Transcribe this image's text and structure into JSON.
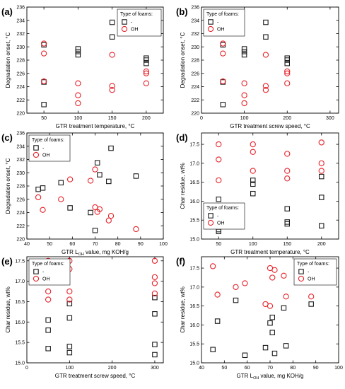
{
  "chart_data": [
    {
      "panel": "(a)",
      "type": "scatter",
      "xlabel": "GTR treatment temperature, °C",
      "ylabel": "Degradation onset, °C",
      "xlim": [
        25,
        225
      ],
      "ylim": [
        220,
        236
      ],
      "xticks": [
        50,
        100,
        150,
        200
      ],
      "yticks": [
        220,
        222,
        224,
        226,
        228,
        230,
        232,
        234,
        236
      ],
      "legend": {
        "title": "Type of foams:",
        "position": "top-right"
      },
      "series": [
        {
          "name": "-",
          "marker": "square",
          "points": [
            [
              50,
              221.3
            ],
            [
              50,
              224.7
            ],
            [
              50,
              230.3
            ],
            [
              100,
              228.8
            ],
            [
              100,
              229.3
            ],
            [
              100,
              229.7
            ],
            [
              150,
              231.5
            ],
            [
              150,
              233.7
            ],
            [
              200,
              227.5
            ],
            [
              200,
              228.0
            ],
            [
              200,
              228.3
            ]
          ]
        },
        {
          "name": "OH",
          "marker": "circle",
          "points": [
            [
              50,
              224.8
            ],
            [
              50,
              229.0
            ],
            [
              50,
              230.5
            ],
            [
              100,
              221.5
            ],
            [
              100,
              222.7
            ],
            [
              100,
              224.5
            ],
            [
              150,
              223.5
            ],
            [
              150,
              224.1
            ],
            [
              150,
              228.8
            ],
            [
              200,
              224.5
            ],
            [
              200,
              226.0
            ],
            [
              200,
              226.3
            ]
          ]
        }
      ]
    },
    {
      "panel": "(b)",
      "type": "scatter",
      "xlabel": "GTR treatment screw speed, °C",
      "ylabel": "Degradation onset, °C",
      "xlim": [
        0,
        320
      ],
      "ylim": [
        220,
        236
      ],
      "xticks": [
        0,
        100,
        200,
        300
      ],
      "yticks": [
        220,
        222,
        224,
        226,
        228,
        230,
        232,
        234,
        236
      ],
      "legend": {
        "title": "Type of foams:",
        "position": "top-right"
      },
      "series": [
        {
          "name": "-",
          "marker": "square",
          "points": [
            [
              50,
              221.3
            ],
            [
              50,
              224.7
            ],
            [
              50,
              230.3
            ],
            [
              100,
              228.8
            ],
            [
              100,
              229.3
            ],
            [
              100,
              229.7
            ],
            [
              150,
              231.5
            ],
            [
              150,
              233.7
            ],
            [
              200,
              227.5
            ],
            [
              200,
              228.0
            ],
            [
              200,
              228.3
            ]
          ]
        },
        {
          "name": "OH",
          "marker": "circle",
          "points": [
            [
              50,
              224.8
            ],
            [
              50,
              229.0
            ],
            [
              50,
              230.5
            ],
            [
              100,
              221.5
            ],
            [
              100,
              222.7
            ],
            [
              100,
              224.5
            ],
            [
              150,
              223.5
            ],
            [
              150,
              224.1
            ],
            [
              150,
              228.8
            ],
            [
              200,
              224.5
            ],
            [
              200,
              226.0
            ],
            [
              200,
              226.3
            ]
          ]
        }
      ]
    },
    {
      "panel": "(c)",
      "type": "scatter",
      "xlabel": "GTR L_OH value, mg KOH/g",
      "ylabel": "Degradation onset, °C",
      "xlim": [
        40,
        100
      ],
      "ylim": [
        220,
        236
      ],
      "xticks": [
        40,
        50,
        60,
        70,
        80,
        90,
        100
      ],
      "yticks": [
        220,
        222,
        224,
        226,
        228,
        230,
        232,
        234,
        236
      ],
      "legend": {
        "title": "Type of foams:",
        "position": "top-left"
      },
      "series": [
        {
          "name": "-",
          "marker": "square",
          "points": [
            [
              45,
              227.5
            ],
            [
              47,
              227.7
            ],
            [
              55,
              228.5
            ],
            [
              59,
              224.7
            ],
            [
              68,
              224.0
            ],
            [
              70,
              221.3
            ],
            [
              71,
              231.5
            ],
            [
              72,
              229.7
            ],
            [
              76,
              228.7
            ],
            [
              77,
              233.7
            ],
            [
              88,
              229.5
            ]
          ]
        },
        {
          "name": "OH",
          "marker": "circle",
          "points": [
            [
              45,
              226.3
            ],
            [
              47,
              224.4
            ],
            [
              55,
              226.0
            ],
            [
              59,
              229.0
            ],
            [
              68,
              228.8
            ],
            [
              70,
              230.5
            ],
            [
              70,
              224.8
            ],
            [
              71,
              224.1
            ],
            [
              72,
              224.5
            ],
            [
              76,
              222.8
            ],
            [
              77,
              223.5
            ],
            [
              88,
              221.5
            ]
          ]
        }
      ]
    },
    {
      "panel": "(d)",
      "type": "scatter",
      "xlabel": "GTR treatment temperature, °C",
      "ylabel": "Char residue, wt%",
      "xlim": [
        25,
        225
      ],
      "ylim": [
        15.0,
        17.8
      ],
      "xticks": [
        50,
        100,
        150,
        200
      ],
      "yticks": [
        15.0,
        15.5,
        16.0,
        16.5,
        17.0,
        17.5
      ],
      "legend": {
        "title": "Type of foams:",
        "position": "bottom-left"
      },
      "series": [
        {
          "name": "-",
          "marker": "square",
          "points": [
            [
              50,
              15.2
            ],
            [
              50,
              15.25
            ],
            [
              50,
              16.05
            ],
            [
              100,
              16.2
            ],
            [
              100,
              16.45
            ],
            [
              100,
              16.55
            ],
            [
              150,
              15.4
            ],
            [
              150,
              15.45
            ],
            [
              150,
              15.8
            ],
            [
              200,
              15.35
            ],
            [
              200,
              16.1
            ],
            [
              200,
              16.65
            ]
          ]
        },
        {
          "name": "OH",
          "marker": "circle",
          "points": [
            [
              50,
              16.55
            ],
            [
              50,
              17.1
            ],
            [
              50,
              17.5
            ],
            [
              100,
              16.8
            ],
            [
              100,
              17.3
            ],
            [
              100,
              17.5
            ],
            [
              150,
              16.6
            ],
            [
              150,
              16.8
            ],
            [
              150,
              17.25
            ],
            [
              200,
              16.8
            ],
            [
              200,
              17.0
            ],
            [
              200,
              17.55
            ]
          ]
        }
      ]
    },
    {
      "panel": "(e)",
      "type": "scatter",
      "xlabel": "GTR treatment screw speed, °C",
      "ylabel": "Char residue, wt%",
      "xlim": [
        0,
        320
      ],
      "ylim": [
        15.0,
        17.6
      ],
      "xticks": [
        0,
        100,
        200,
        300
      ],
      "yticks": [
        15.0,
        15.5,
        16.0,
        16.5,
        17.0,
        17.5
      ],
      "legend": {
        "title": "Type of foams:",
        "position": "top-left"
      },
      "series": [
        {
          "name": "-",
          "marker": "square",
          "points": [
            [
              50,
              15.35
            ],
            [
              50,
              15.8
            ],
            [
              50,
              16.05
            ],
            [
              100,
              15.25
            ],
            [
              100,
              15.4
            ],
            [
              100,
              16.1
            ],
            [
              100,
              16.45
            ],
            [
              300,
              15.2
            ],
            [
              300,
              15.45
            ],
            [
              300,
              16.2
            ],
            [
              300,
              16.6
            ]
          ]
        },
        {
          "name": "OH",
          "marker": "circle",
          "points": [
            [
              50,
              16.55
            ],
            [
              50,
              16.75
            ],
            [
              50,
              17.25
            ],
            [
              50,
              17.5
            ],
            [
              100,
              16.55
            ],
            [
              100,
              16.75
            ],
            [
              100,
              17.3
            ],
            [
              100,
              17.5
            ],
            [
              300,
              16.7
            ],
            [
              300,
              16.95
            ],
            [
              300,
              17.1
            ],
            [
              300,
              17.5
            ]
          ]
        }
      ]
    },
    {
      "panel": "(f)",
      "type": "scatter",
      "xlabel": "GTR L_OH value, mg KOH/g",
      "ylabel": "Char residue, wt%",
      "xlim": [
        40,
        100
      ],
      "ylim": [
        15.0,
        17.8
      ],
      "xticks": [
        40,
        50,
        60,
        70,
        80,
        90,
        100
      ],
      "yticks": [
        15.0,
        15.5,
        16.0,
        16.5,
        17.0,
        17.5
      ],
      "legend": {
        "title": "Type of foams:",
        "position": "top-right"
      },
      "series": [
        {
          "name": "-",
          "marker": "square",
          "points": [
            [
              45,
              15.35
            ],
            [
              47,
              16.1
            ],
            [
              55,
              16.65
            ],
            [
              59,
              15.2
            ],
            [
              68,
              15.4
            ],
            [
              70,
              16.05
            ],
            [
              71,
              16.2
            ],
            [
              71,
              15.8
            ],
            [
              72,
              15.25
            ],
            [
              76,
              16.45
            ],
            [
              77,
              15.45
            ],
            [
              88,
              16.55
            ]
          ]
        },
        {
          "name": "OH",
          "marker": "circle",
          "points": [
            [
              45,
              17.55
            ],
            [
              47,
              16.8
            ],
            [
              55,
              17.0
            ],
            [
              59,
              17.1
            ],
            [
              68,
              16.55
            ],
            [
              70,
              17.5
            ],
            [
              70,
              16.5
            ],
            [
              71,
              17.25
            ],
            [
              72,
              17.45
            ],
            [
              76,
              17.3
            ],
            [
              77,
              16.75
            ],
            [
              88,
              16.75
            ]
          ]
        }
      ]
    }
  ],
  "colors": {
    "square": "#1a1a1a",
    "circle": "#e8232a",
    "axis": "#000000"
  }
}
